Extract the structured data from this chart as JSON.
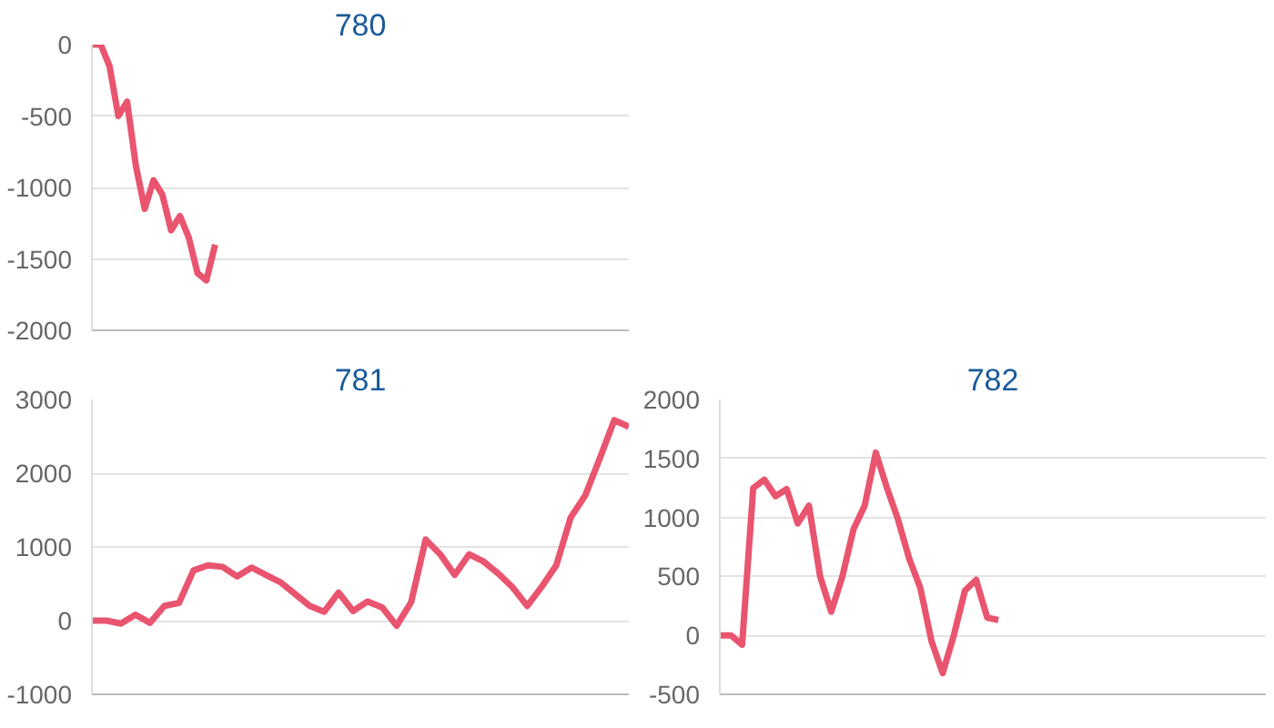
{
  "chart_data": [
    {
      "type": "line",
      "title": "780",
      "categories": [
        null,
        null,
        null,
        null,
        null,
        null,
        null,
        null,
        null,
        null,
        null,
        null,
        null,
        null,
        null,
        null,
        null,
        null,
        null,
        null,
        null,
        null,
        null,
        null,
        null,
        null,
        null,
        null,
        null,
        null,
        null,
        null,
        null,
        null,
        null,
        null,
        null,
        null,
        null,
        null,
        null,
        null,
        null,
        null,
        null,
        null,
        null,
        null,
        null,
        null,
        null,
        null,
        null,
        null,
        null,
        null,
        null,
        null,
        null,
        null,
        null,
        null
      ],
      "ylim": [
        -2000,
        0
      ],
      "yticks": [
        -2000,
        -1500,
        -1000,
        -500,
        0
      ],
      "grid": "y",
      "tick_labels": "y",
      "series": [
        {
          "color": "#e9546f",
          "values": [
            0,
            0,
            -150,
            -500,
            -400,
            -850,
            -1150,
            -950,
            -1050,
            -1300,
            -1200,
            -1350,
            -1600,
            -1650,
            -1400,
            null,
            null,
            null,
            null,
            null,
            null,
            null,
            null,
            null,
            null,
            null,
            null,
            null,
            null,
            null,
            null,
            null,
            null,
            null,
            null,
            null,
            null,
            null,
            null,
            null,
            null,
            null,
            null,
            null,
            null,
            null,
            null,
            null,
            null,
            null,
            null,
            null,
            null,
            null,
            null,
            null,
            null,
            null,
            null,
            null,
            null,
            null
          ]
        }
      ]
    },
    {
      "type": "line",
      "title": "781",
      "categories": [
        null,
        null,
        null,
        null,
        null,
        null,
        null,
        null,
        null,
        null,
        null,
        null,
        null,
        null,
        null,
        null,
        null,
        null,
        null,
        null,
        null,
        null,
        null,
        null,
        null,
        null,
        null,
        null,
        null,
        null,
        null,
        null,
        null,
        null,
        null,
        null,
        null,
        null
      ],
      "ylim": [
        -1000,
        3000
      ],
      "yticks": [
        -1000,
        0,
        1000,
        2000,
        3000
      ],
      "grid": "y",
      "tick_labels": "y",
      "series": [
        {
          "color": "#e9546f",
          "values": [
            0,
            0,
            -40,
            80,
            -30,
            200,
            240,
            680,
            750,
            730,
            600,
            720,
            620,
            520,
            360,
            200,
            120,
            380,
            130,
            260,
            180,
            -70,
            250,
            1100,
            900,
            620,
            900,
            800,
            640,
            450,
            200,
            460,
            750,
            1400,
            1700,
            2200,
            2720,
            2630
          ]
        }
      ]
    },
    {
      "type": "line",
      "title": "782",
      "categories": [
        null,
        null,
        null,
        null,
        null,
        null,
        null,
        null,
        null,
        null,
        null,
        null,
        null,
        null,
        null,
        null,
        null,
        null,
        null,
        null,
        null,
        null,
        null,
        null,
        null,
        null,
        null,
        null,
        null,
        null,
        null,
        null,
        null,
        null,
        null,
        null,
        null,
        null,
        null,
        null,
        null,
        null,
        null,
        null,
        null,
        null,
        null,
        null,
        null,
        null
      ],
      "ylim": [
        -500,
        2000
      ],
      "yticks": [
        -500,
        0,
        500,
        1000,
        1500,
        2000
      ],
      "grid": "y",
      "tick_labels": "y",
      "series": [
        {
          "color": "#e9546f",
          "values": [
            0,
            0,
            -80,
            1250,
            1320,
            1180,
            1240,
            950,
            1100,
            500,
            200,
            500,
            900,
            1100,
            1550,
            1250,
            980,
            650,
            400,
            -50,
            -320,
            0,
            380,
            470,
            150,
            130,
            null,
            null,
            null,
            null,
            null,
            null,
            null,
            null,
            null,
            null,
            null,
            null,
            null,
            null,
            null,
            null,
            null,
            null,
            null,
            null,
            null,
            null,
            null,
            null
          ]
        }
      ]
    }
  ]
}
